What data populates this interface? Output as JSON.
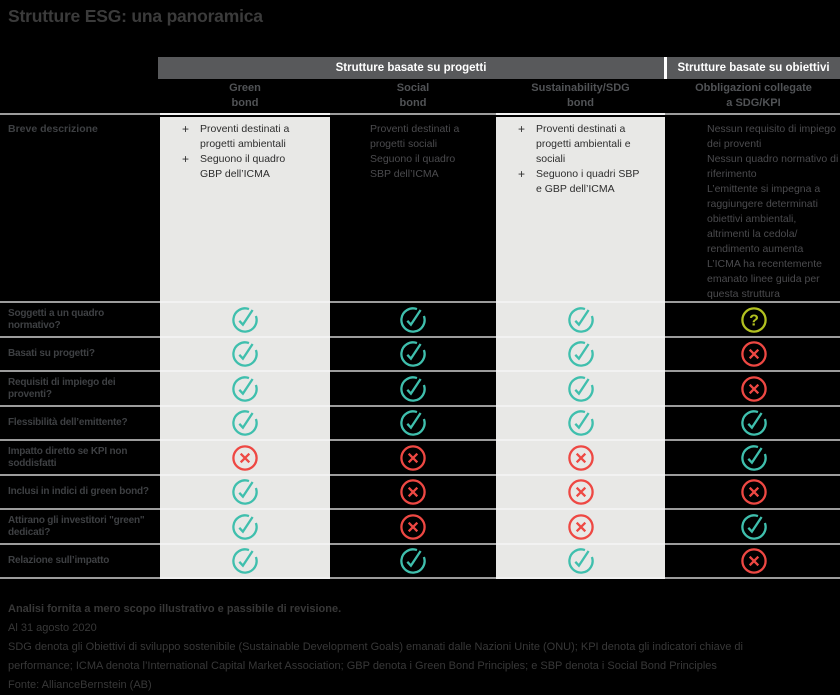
{
  "title": "Strutture ESG: una panoramica",
  "colors": {
    "background": "#000000",
    "title_text": "#3b3b3b",
    "band_bg": "#58595b",
    "band_text": "#ffffff",
    "column_header_text": "#515356",
    "light_cell_bg": "#e8e8e6",
    "light_cell_text": "#2d2d2d",
    "dark_cell_text": "#4b4b4e",
    "row_label_text": "#3e4043",
    "separator_dark": "#9c9c9c",
    "separator_light": "#f2f2f2",
    "footnote_text": "#383838",
    "marks": {
      "check": "#3fbfad",
      "cross": "#ee4843",
      "question": "#b2c120"
    }
  },
  "header": {
    "group1": "Strutture basate su progetti",
    "group2": "Strutture basate su obiettivi",
    "columns": [
      {
        "lines": [
          "Green",
          "bond"
        ]
      },
      {
        "lines": [
          "Social",
          "bond"
        ]
      },
      {
        "lines": [
          "Sustainability/SDG",
          "bond"
        ]
      },
      {
        "lines": [
          "Obbligazioni collegate",
          "a SDG/KPI"
        ]
      }
    ]
  },
  "description": {
    "label": "Breve descrizione",
    "green": {
      "bullet": "+",
      "items": [
        "Proventi destinati a progetti ambientali",
        "Seguono il quadro GBP dell’ICMA"
      ]
    },
    "social": {
      "items": [
        "Proventi destinati a progetti sociali",
        "Seguono il quadro SBP dell’ICMA"
      ]
    },
    "sustainability": {
      "bullet": "+",
      "items": [
        "Proventi destinati a progetti ambientali e sociali",
        "Seguono i quadri SBP e GBP dell’ICMA"
      ]
    },
    "sdg_kpi": {
      "items": [
        "Nessun requisito di impiego dei proventi",
        "Nessun quadro normativo di riferimento",
        "L’emittente si impegna a raggiungere determinati obiettivi ambientali, altrimenti la cedola/ rendimento aumenta",
        "L’ICMA ha recentemente emanato linee guida per questa struttura"
      ]
    }
  },
  "rows": [
    {
      "label": "Soggetti a un quadro normativo?",
      "marks": [
        "check",
        "check",
        "check",
        "question"
      ]
    },
    {
      "label": "Basati su progetti?",
      "marks": [
        "check",
        "check",
        "check",
        "cross"
      ]
    },
    {
      "label": "Requisiti di impiego dei proventi?",
      "marks": [
        "check",
        "check",
        "check",
        "cross"
      ]
    },
    {
      "label": "Flessibilità dell’emittente?",
      "marks": [
        "check",
        "check",
        "check",
        "check"
      ]
    },
    {
      "label": "Impatto diretto se KPI non soddisfatti",
      "marks": [
        "cross",
        "cross",
        "cross",
        "check"
      ]
    },
    {
      "label": "Inclusi in indici di green bond?",
      "marks": [
        "check",
        "cross",
        "cross",
        "cross"
      ]
    },
    {
      "label": "Attirano gli investitori \"green\" dedicati?",
      "marks": [
        "check",
        "cross",
        "cross",
        "check"
      ]
    },
    {
      "label": "Relazione sull’impatto",
      "marks": [
        "check",
        "check",
        "check",
        "cross"
      ]
    }
  ],
  "footnotes": [
    "Analisi fornita a mero scopo illustrativo e passibile di revisione.",
    "Al 31 agosto 2020",
    "SDG denota gli Obiettivi di sviluppo sostenibile (Sustainable Development Goals) emanati dalle Nazioni Unite (ONU); KPI denota gli indicatori chiave di",
    "performance; ICMA denota l’International Capital Market Association; GBP denota i Green Bond Principles; e SBP denota i Social Bond Principles",
    "Fonte: AllianceBernstein (AB)"
  ],
  "chart_data": {
    "type": "table",
    "title": "Strutture ESG: una panoramica",
    "column_groups": [
      {
        "label": "Strutture basate su progetti",
        "columns": [
          "Green bond",
          "Social bond",
          "Sustainability/SDG bond"
        ]
      },
      {
        "label": "Strutture basate su obiettivi",
        "columns": [
          "Obbligazioni collegate a SDG/KPI"
        ]
      }
    ],
    "columns": [
      "Green bond",
      "Social bond",
      "Sustainability/SDG bond",
      "Obbligazioni collegate a SDG/KPI"
    ],
    "description_row": {
      "label": "Breve descrizione",
      "values": [
        "Proventi destinati a progetti ambientali; Seguono il quadro GBP dell'ICMA",
        "Proventi destinati a progetti sociali; Seguono il quadro SBP dell'ICMA",
        "Proventi destinati a progetti ambientali e sociali; Seguono i quadri SBP e GBP dell'ICMA",
        "Nessun requisito di impiego dei proventi; Nessun quadro normativo di riferimento; L'emittente si impegna a raggiungere determinati obiettivi ambientali, altrimenti la cedola/rendimento aumenta; L'ICMA ha recentemente emanato linee guida per questa struttura"
      ]
    },
    "rows": [
      {
        "label": "Soggetti a un quadro normativo?",
        "values": [
          "✓",
          "✓",
          "✓",
          "?"
        ]
      },
      {
        "label": "Basati su progetti?",
        "values": [
          "✓",
          "✓",
          "✓",
          "✗"
        ]
      },
      {
        "label": "Requisiti di impiego dei proventi?",
        "values": [
          "✓",
          "✓",
          "✓",
          "✗"
        ]
      },
      {
        "label": "Flessibilità dell'emittente?",
        "values": [
          "✓",
          "✓",
          "✓",
          "✓"
        ]
      },
      {
        "label": "Impatto diretto se KPI non soddisfatti",
        "values": [
          "✗",
          "✗",
          "✗",
          "✓"
        ]
      },
      {
        "label": "Inclusi in indici di green bond?",
        "values": [
          "✓",
          "✗",
          "✗",
          "✗"
        ]
      },
      {
        "label": "Attirano gli investitori \"green\" dedicati?",
        "values": [
          "✓",
          "✗",
          "✗",
          "✓"
        ]
      },
      {
        "label": "Relazione sull'impatto",
        "values": [
          "✓",
          "✓",
          "✓",
          "✗"
        ]
      }
    ]
  }
}
